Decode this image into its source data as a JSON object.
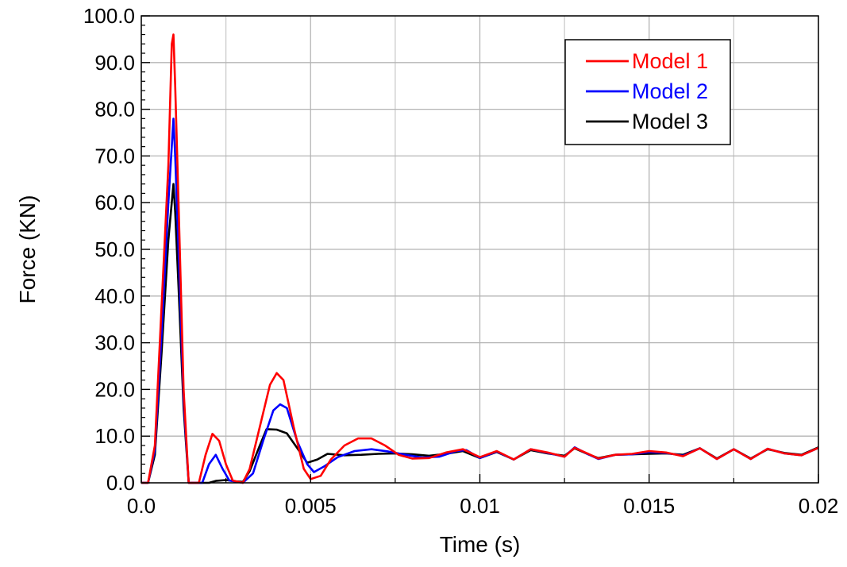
{
  "chart_data": {
    "type": "line",
    "title": "",
    "xlabel": "Time (s)",
    "ylabel": "Force (KN)",
    "xlim": [
      0,
      0.02
    ],
    "ylim": [
      0,
      100
    ],
    "x_ticks": [
      {
        "value": 0,
        "label": "0.0"
      },
      {
        "value": 0.005,
        "label": "0.005"
      },
      {
        "value": 0.01,
        "label": "0.01"
      },
      {
        "value": 0.015,
        "label": "0.015"
      },
      {
        "value": 0.02,
        "label": "0.02"
      }
    ],
    "y_ticks": [
      {
        "value": 0,
        "label": "0.0"
      },
      {
        "value": 10,
        "label": "10.0"
      },
      {
        "value": 20,
        "label": "20.0"
      },
      {
        "value": 30,
        "label": "30.0"
      },
      {
        "value": 40,
        "label": "40.0"
      },
      {
        "value": 50,
        "label": "50.0"
      },
      {
        "value": 60,
        "label": "60.0"
      },
      {
        "value": 70,
        "label": "70.0"
      },
      {
        "value": 80,
        "label": "80.0"
      },
      {
        "value": 90,
        "label": "90.0"
      },
      {
        "value": 100,
        "label": "100.0"
      }
    ],
    "grid": true,
    "legend_position": "top-right",
    "series": [
      {
        "name": "Model 1",
        "color": "#ff0000",
        "points": [
          [
            0,
            0
          ],
          [
            0.0002,
            0
          ],
          [
            0.0004,
            8
          ],
          [
            0.0006,
            38
          ],
          [
            0.0008,
            68
          ],
          [
            0.0009,
            94
          ],
          [
            0.00095,
            96
          ],
          [
            0.001,
            85
          ],
          [
            0.0011,
            60
          ],
          [
            0.00125,
            20
          ],
          [
            0.0014,
            0
          ],
          [
            0.0015,
            0
          ],
          [
            0.0017,
            0
          ],
          [
            0.0019,
            6
          ],
          [
            0.0021,
            10.5
          ],
          [
            0.0023,
            9
          ],
          [
            0.0025,
            4
          ],
          [
            0.0027,
            0.5
          ],
          [
            0.003,
            0
          ],
          [
            0.0032,
            3
          ],
          [
            0.0035,
            12
          ],
          [
            0.0038,
            21
          ],
          [
            0.004,
            23.5
          ],
          [
            0.0042,
            22
          ],
          [
            0.0045,
            12
          ],
          [
            0.0048,
            3
          ],
          [
            0.005,
            0.8
          ],
          [
            0.0053,
            1.5
          ],
          [
            0.0056,
            5
          ],
          [
            0.006,
            8
          ],
          [
            0.0064,
            9.5
          ],
          [
            0.0068,
            9.5
          ],
          [
            0.0072,
            8
          ],
          [
            0.0076,
            6
          ],
          [
            0.008,
            5.2
          ],
          [
            0.0085,
            5.3
          ],
          [
            0.009,
            6.5
          ],
          [
            0.0095,
            7.2
          ],
          [
            0.01,
            5.5
          ],
          [
            0.0105,
            6.8
          ],
          [
            0.011,
            5
          ],
          [
            0.0115,
            7.2
          ],
          [
            0.012,
            6.5
          ],
          [
            0.0125,
            5.6
          ],
          [
            0.0128,
            7.5
          ],
          [
            0.0132,
            6.2
          ],
          [
            0.0135,
            5.2
          ],
          [
            0.014,
            6
          ],
          [
            0.0145,
            6.2
          ],
          [
            0.015,
            6.8
          ],
          [
            0.0155,
            6.5
          ],
          [
            0.016,
            5.7
          ],
          [
            0.0165,
            7.4
          ],
          [
            0.017,
            5.1
          ],
          [
            0.0175,
            7.2
          ],
          [
            0.018,
            5.1
          ],
          [
            0.0185,
            7.3
          ],
          [
            0.019,
            6.3
          ],
          [
            0.0195,
            5.9
          ],
          [
            0.02,
            7.5
          ]
        ]
      },
      {
        "name": "Model 2",
        "color": "#0000ff",
        "points": [
          [
            0,
            0
          ],
          [
            0.0002,
            0
          ],
          [
            0.0004,
            7
          ],
          [
            0.0006,
            32
          ],
          [
            0.0008,
            60
          ],
          [
            0.00095,
            78
          ],
          [
            0.001,
            70
          ],
          [
            0.0011,
            50
          ],
          [
            0.00125,
            18
          ],
          [
            0.0014,
            0
          ],
          [
            0.0016,
            0
          ],
          [
            0.0018,
            0
          ],
          [
            0.002,
            4
          ],
          [
            0.0022,
            6
          ],
          [
            0.0024,
            3
          ],
          [
            0.0026,
            0.5
          ],
          [
            0.003,
            0
          ],
          [
            0.0033,
            2
          ],
          [
            0.0036,
            9
          ],
          [
            0.0039,
            15.5
          ],
          [
            0.0041,
            16.8
          ],
          [
            0.0043,
            16
          ],
          [
            0.0046,
            9
          ],
          [
            0.0049,
            4
          ],
          [
            0.0051,
            2.3
          ],
          [
            0.0054,
            3.5
          ],
          [
            0.0058,
            5.5
          ],
          [
            0.0063,
            6.8
          ],
          [
            0.0068,
            7.2
          ],
          [
            0.0073,
            6.7
          ],
          [
            0.0078,
            6
          ],
          [
            0.0083,
            5.4
          ],
          [
            0.0088,
            5.6
          ],
          [
            0.0093,
            6.8
          ],
          [
            0.0096,
            7
          ],
          [
            0.01,
            5.3
          ],
          [
            0.0105,
            6.7
          ],
          [
            0.011,
            5
          ],
          [
            0.0115,
            7.2
          ],
          [
            0.012,
            6.4
          ],
          [
            0.0125,
            5.6
          ],
          [
            0.0128,
            7.6
          ],
          [
            0.0132,
            6.1
          ],
          [
            0.0135,
            5.1
          ],
          [
            0.014,
            6
          ],
          [
            0.0145,
            6.1
          ],
          [
            0.015,
            6.6
          ],
          [
            0.0155,
            6.4
          ],
          [
            0.016,
            5.8
          ],
          [
            0.0165,
            7.4
          ],
          [
            0.017,
            5.1
          ],
          [
            0.0175,
            7.2
          ],
          [
            0.018,
            5.1
          ],
          [
            0.0185,
            7.3
          ],
          [
            0.019,
            6.3
          ],
          [
            0.0195,
            5.9
          ],
          [
            0.02,
            7.5
          ]
        ]
      },
      {
        "name": "Model 3",
        "color": "#000000",
        "points": [
          [
            0,
            0
          ],
          [
            0.0002,
            0
          ],
          [
            0.0004,
            6
          ],
          [
            0.0006,
            28
          ],
          [
            0.0008,
            52
          ],
          [
            0.00095,
            64
          ],
          [
            0.001,
            58
          ],
          [
            0.0011,
            42
          ],
          [
            0.00125,
            16
          ],
          [
            0.0014,
            0
          ],
          [
            0.0017,
            0
          ],
          [
            0.002,
            0
          ],
          [
            0.0022,
            0.4
          ],
          [
            0.0025,
            0.6
          ],
          [
            0.0028,
            0.3
          ],
          [
            0.003,
            0.2
          ],
          [
            0.0032,
            2.5
          ],
          [
            0.0035,
            8
          ],
          [
            0.0037,
            11.5
          ],
          [
            0.004,
            11.4
          ],
          [
            0.0043,
            10.6
          ],
          [
            0.0046,
            7.5
          ],
          [
            0.0049,
            4.3
          ],
          [
            0.0052,
            5
          ],
          [
            0.0055,
            6.2
          ],
          [
            0.006,
            5.9
          ],
          [
            0.0065,
            6
          ],
          [
            0.007,
            6.2
          ],
          [
            0.0075,
            6.3
          ],
          [
            0.008,
            6.1
          ],
          [
            0.0085,
            5.8
          ],
          [
            0.009,
            6.2
          ],
          [
            0.0095,
            6.8
          ],
          [
            0.01,
            5.3
          ],
          [
            0.0105,
            6.6
          ],
          [
            0.011,
            5
          ],
          [
            0.0115,
            7
          ],
          [
            0.012,
            6.3
          ],
          [
            0.0125,
            5.8
          ],
          [
            0.0128,
            7.4
          ],
          [
            0.0132,
            6.1
          ],
          [
            0.0135,
            5.3
          ],
          [
            0.014,
            6
          ],
          [
            0.0145,
            6.1
          ],
          [
            0.015,
            6.2
          ],
          [
            0.0155,
            6.3
          ],
          [
            0.016,
            6
          ],
          [
            0.0165,
            7.4
          ],
          [
            0.017,
            5.2
          ],
          [
            0.0175,
            7.2
          ],
          [
            0.018,
            5.2
          ],
          [
            0.0185,
            7.2
          ],
          [
            0.019,
            6.4
          ],
          [
            0.0195,
            6
          ],
          [
            0.02,
            7.6
          ]
        ]
      }
    ]
  }
}
